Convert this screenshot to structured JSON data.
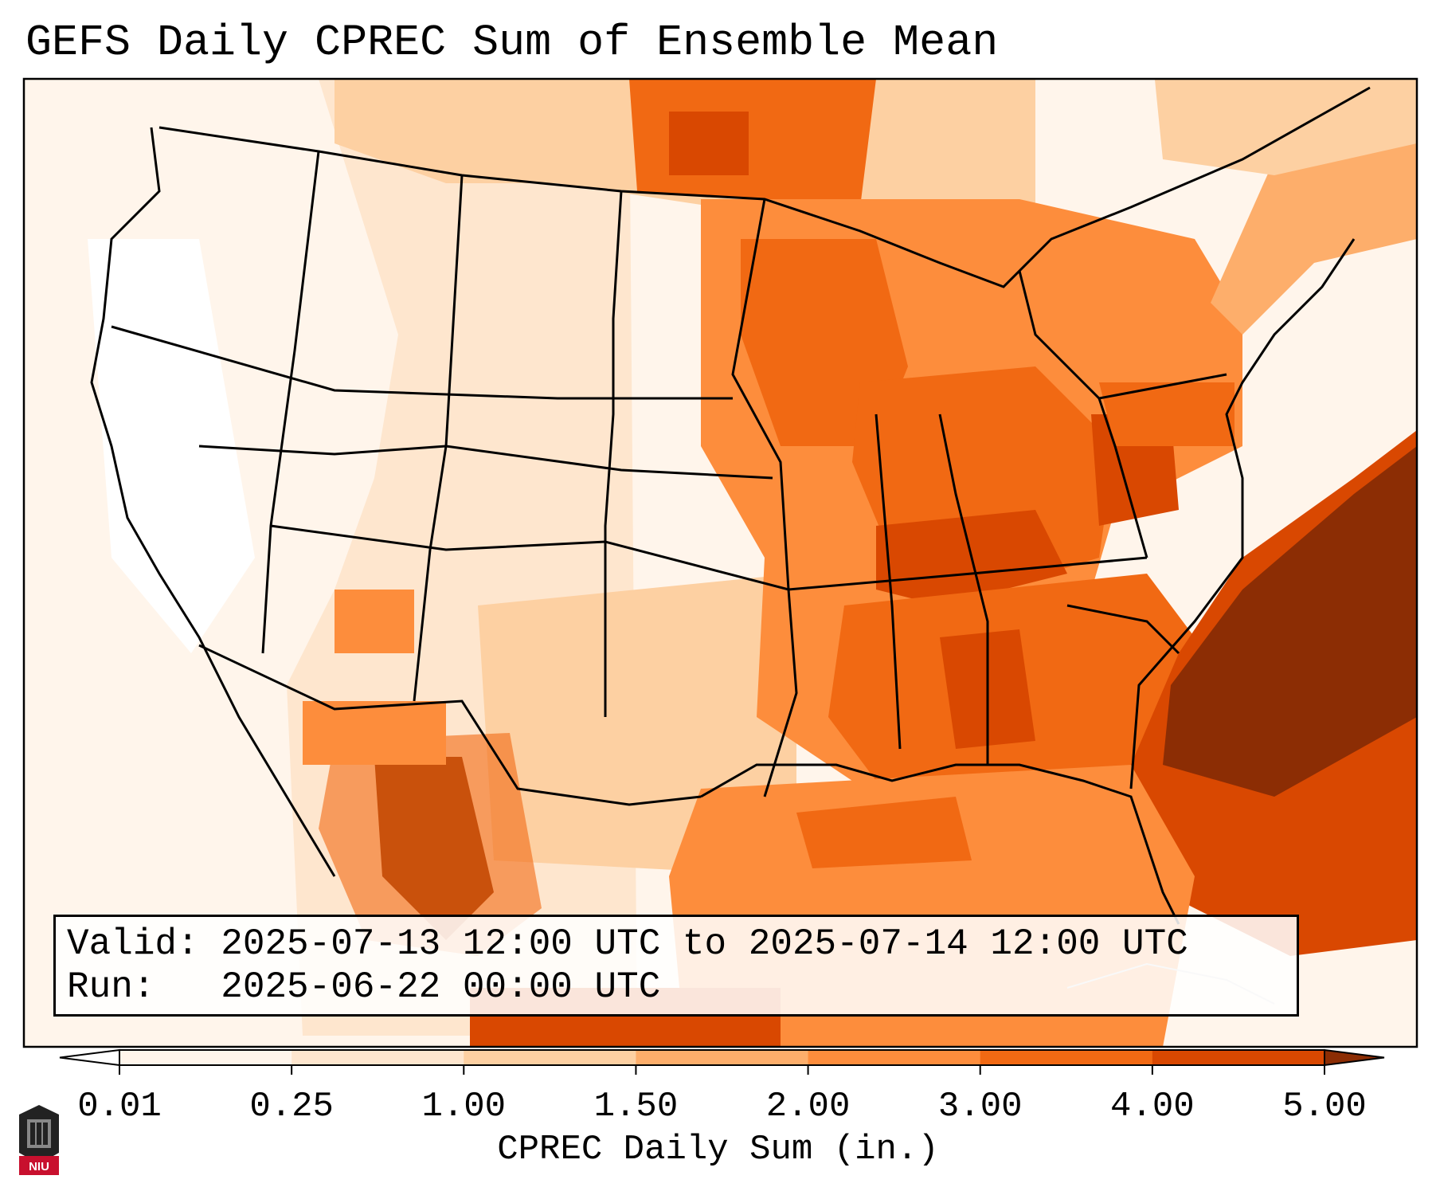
{
  "title": "GEFS Daily CPREC Sum of Ensemble Mean",
  "info": {
    "valid_line": "Valid: 2025-07-13 12:00 UTC to 2025-07-14 12:00 UTC",
    "run_line": "Run:   2025-06-22 00:00 UTC"
  },
  "colorbar": {
    "title": "CPREC Daily Sum (in.)",
    "ticks": [
      "0.01",
      "0.25",
      "1.00",
      "1.50",
      "2.00",
      "3.00",
      "4.00",
      "5.00"
    ],
    "colors": [
      "#fff5eb",
      "#fee6ce",
      "#fdd0a2",
      "#fdae6b",
      "#fd8d3c",
      "#f16913",
      "#d94801",
      "#8c2d04"
    ],
    "under_color": "#ffffff",
    "over_color": "#8c2d04"
  },
  "logo": {
    "text": "NIU",
    "color": "#c8102e"
  }
}
